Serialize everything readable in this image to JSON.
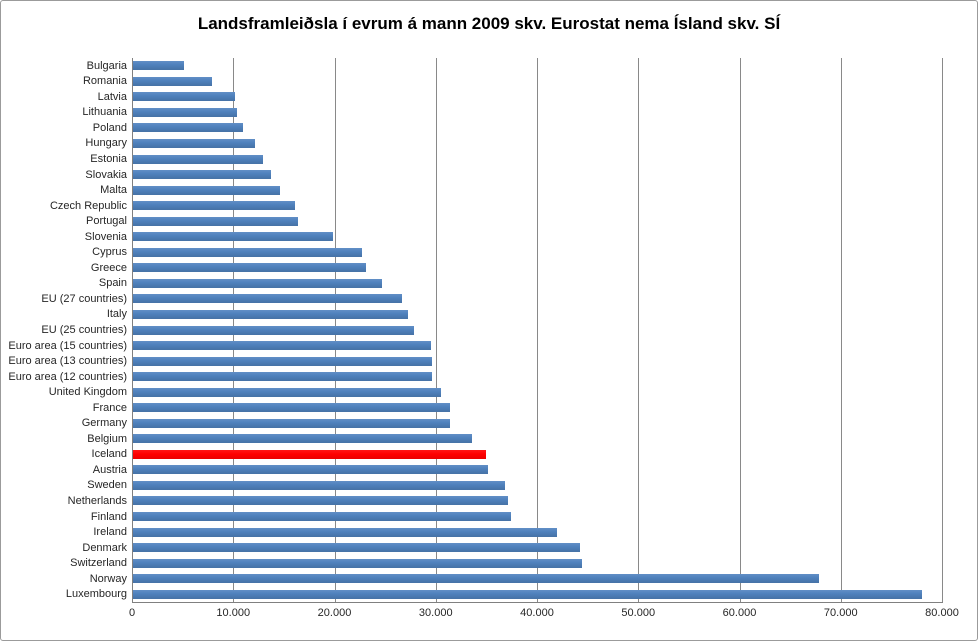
{
  "chart_data": {
    "type": "bar",
    "orientation": "horizontal",
    "title": "Landsframleiðsla í evrum á mann 2009 skv. Eurostat nema Ísland skv. SÍ",
    "categories": [
      "Bulgaria",
      "Romania",
      "Latvia",
      "Lithuania",
      "Poland",
      "Hungary",
      "Estonia",
      "Slovakia",
      "Malta",
      "Czech Republic",
      "Portugal",
      "Slovenia",
      "Cyprus",
      "Greece",
      "Spain",
      "EU (27 countries)",
      "Italy",
      "EU (25 countries)",
      "Euro area (15 countries)",
      "Euro area (13 countries)",
      "Euro area (12 countries)",
      "United Kingdom",
      "France",
      "Germany",
      "Belgium",
      "Iceland",
      "Austria",
      "Sweden",
      "Netherlands",
      "Finland",
      "Ireland",
      "Denmark",
      "Switzerland",
      "Norway",
      "Luxembourg"
    ],
    "values": [
      5000,
      7800,
      10100,
      10300,
      10900,
      12000,
      12800,
      13600,
      14500,
      16000,
      16300,
      19800,
      22600,
      23000,
      24600,
      26600,
      27200,
      27800,
      29400,
      29500,
      29500,
      30400,
      31300,
      31300,
      33500,
      34900,
      35100,
      36700,
      37000,
      37300,
      41900,
      44100,
      44300,
      67800,
      77900
    ],
    "highlighted_category": "Iceland",
    "xlim": [
      0,
      80000
    ],
    "x_ticks": [
      0,
      10000,
      20000,
      30000,
      40000,
      50000,
      60000,
      70000,
      80000
    ],
    "x_tick_labels": [
      "0",
      "10.000",
      "20.000",
      "30.000",
      "40.000",
      "50.000",
      "60.000",
      "70.000",
      "80.000"
    ],
    "grid": "vertical-major",
    "legend": "none",
    "xlabel": "",
    "ylabel": ""
  },
  "colors": {
    "bar": "#4F81BD",
    "highlight": "#FF0000",
    "gridline": "#898989",
    "axis": "#808080",
    "text": "#262626",
    "background": "#FFFFFF"
  }
}
